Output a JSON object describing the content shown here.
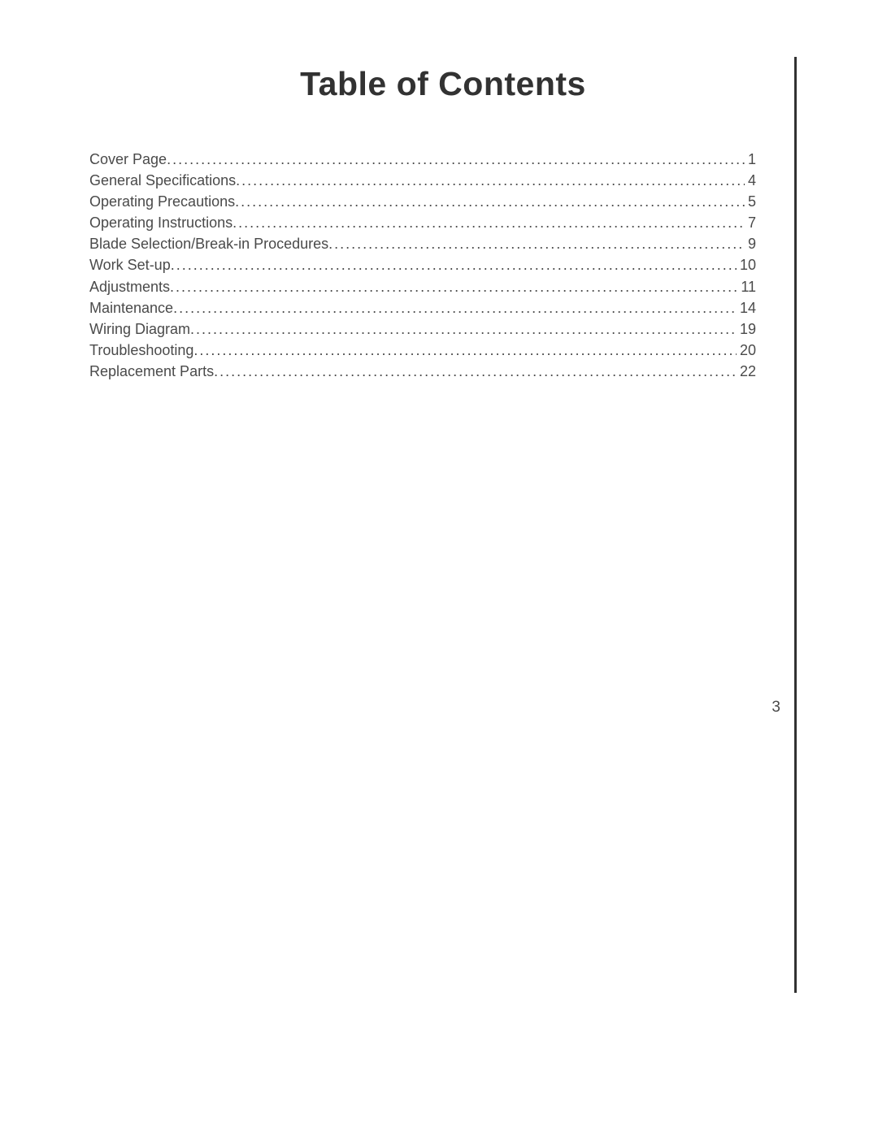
{
  "title": "Table of Contents",
  "page_number": "3",
  "text_color": "#4a4a4a",
  "title_color": "#323232",
  "rule_color": "#323232",
  "background": "#ffffff",
  "title_fontsize": 41,
  "body_fontsize": 18,
  "toc": {
    "entries": [
      {
        "label": "Cover Page",
        "page": "1"
      },
      {
        "label": "General Specifications",
        "page": "4"
      },
      {
        "label": "Operating Precautions",
        "page": "5"
      },
      {
        "label": "Operating Instructions",
        "page": "7"
      },
      {
        "label": "Blade Selection/Break-in Procedures",
        "page": "9"
      },
      {
        "label": "Work Set-up",
        "page": "10"
      },
      {
        "label": "Adjustments",
        "page": "11"
      },
      {
        "label": "Maintenance",
        "page": "14"
      },
      {
        "label": "Wiring Diagram",
        "page": "19"
      },
      {
        "label": "Troubleshooting",
        "page": "20"
      },
      {
        "label": "Replacement Parts",
        "page": "22"
      }
    ]
  }
}
